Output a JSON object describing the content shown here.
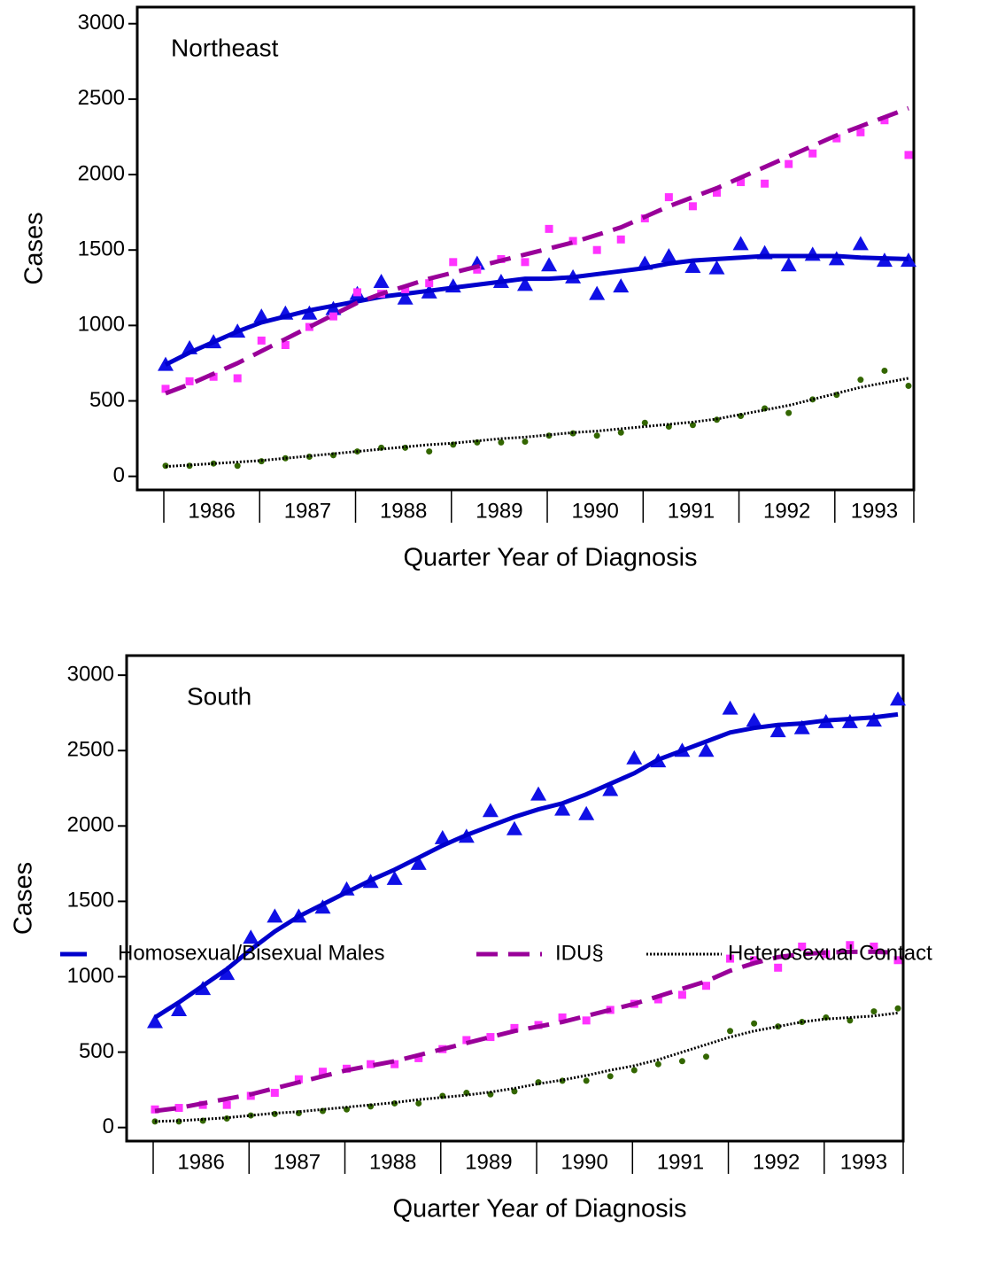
{
  "chart_data": [
    {
      "type": "line",
      "title": "Northeast",
      "xlabel": "Quarter Year of Diagnosis",
      "ylabel": "Cases",
      "categories": [
        "1986",
        null,
        null,
        null,
        "1987",
        null,
        null,
        null,
        "1988",
        null,
        null,
        null,
        "1989",
        null,
        null,
        null,
        "1990",
        null,
        null,
        null,
        "1991",
        null,
        null,
        null,
        "1992",
        null,
        null,
        null,
        "1993",
        null,
        null,
        null
      ],
      "ylim": [
        -90,
        3110
      ],
      "yticks": [
        0,
        500,
        1000,
        1500,
        2000,
        2500,
        3000
      ],
      "series": [
        {
          "name": "Homosexual/Bisexual Males",
          "color": "#0000cc",
          "marker": "triangle",
          "marker_color": "#1010e6",
          "dash": "solid",
          "values": [
            740,
            850,
            890,
            960,
            1060,
            1080,
            1080,
            1110,
            1210,
            1290,
            1180,
            1220,
            1260,
            1410,
            1290,
            1270,
            1400,
            1320,
            1210,
            1260,
            1410,
            1460,
            1390,
            1380,
            1540,
            1480,
            1400,
            1470,
            1440,
            1540,
            1430,
            1430
          ],
          "trend": [
            740,
            820,
            890,
            960,
            1020,
            1060,
            1100,
            1130,
            1160,
            1190,
            1210,
            1230,
            1250,
            1270,
            1290,
            1310,
            1310,
            1320,
            1340,
            1360,
            1380,
            1410,
            1430,
            1440,
            1450,
            1460,
            1460,
            1460,
            1460,
            1450,
            1445,
            1440
          ]
        },
        {
          "name": "IDU§",
          "color": "#990099",
          "marker": "square",
          "marker_color": "#ff33ff",
          "dash": "dashed",
          "values": [
            580,
            630,
            660,
            650,
            900,
            870,
            990,
            1060,
            1220,
            1210,
            1240,
            1280,
            1420,
            1370,
            1440,
            1420,
            1640,
            1560,
            1500,
            1570,
            1710,
            1850,
            1790,
            1880,
            1950,
            1940,
            2070,
            2140,
            2240,
            2280,
            2360,
            2130
          ],
          "trend": [
            550,
            610,
            680,
            750,
            830,
            910,
            990,
            1070,
            1150,
            1210,
            1260,
            1310,
            1350,
            1390,
            1430,
            1470,
            1510,
            1550,
            1600,
            1650,
            1720,
            1790,
            1850,
            1910,
            1980,
            2050,
            2120,
            2190,
            2260,
            2320,
            2380,
            2440
          ]
        },
        {
          "name": "Heterosexual Contact",
          "color": "#000000",
          "marker": "circle",
          "marker_color": "#336600",
          "dash": "dotted",
          "values": [
            70,
            70,
            85,
            70,
            100,
            120,
            130,
            140,
            165,
            190,
            190,
            165,
            210,
            225,
            225,
            230,
            270,
            285,
            270,
            290,
            355,
            330,
            340,
            375,
            400,
            450,
            420,
            510,
            540,
            640,
            700,
            600
          ],
          "trend": [
            65,
            75,
            85,
            95,
            105,
            120,
            135,
            150,
            165,
            180,
            195,
            210,
            220,
            235,
            250,
            260,
            275,
            290,
            300,
            315,
            330,
            345,
            360,
            380,
            410,
            440,
            470,
            510,
            550,
            590,
            620,
            650
          ]
        }
      ]
    },
    {
      "type": "line",
      "title": "South",
      "xlabel": "Quarter Year of Diagnosis",
      "ylabel": "Cases",
      "categories": [
        "1986",
        null,
        null,
        null,
        "1987",
        null,
        null,
        null,
        "1988",
        null,
        null,
        null,
        "1989",
        null,
        null,
        null,
        "1990",
        null,
        null,
        null,
        "1991",
        null,
        null,
        null,
        "1992",
        null,
        null,
        null,
        "1993",
        null,
        null,
        null
      ],
      "ylim": [
        -90,
        3130
      ],
      "yticks": [
        0,
        500,
        1000,
        1500,
        2000,
        2500,
        3000
      ],
      "series": [
        {
          "color": "#0000cc",
          "marker": "triangle",
          "marker_color": "#1010e6",
          "dash": "solid",
          "values": [
            700,
            780,
            920,
            1020,
            1260,
            1400,
            1400,
            1460,
            1580,
            1630,
            1650,
            1750,
            1920,
            1930,
            2100,
            1980,
            2210,
            2110,
            2080,
            2240,
            2450,
            2430,
            2500,
            2500,
            2780,
            2700,
            2630,
            2650,
            2690,
            2690,
            2700,
            2840
          ],
          "trend": [
            730,
            830,
            940,
            1050,
            1180,
            1300,
            1400,
            1480,
            1560,
            1640,
            1710,
            1790,
            1870,
            1940,
            2000,
            2060,
            2110,
            2150,
            2210,
            2280,
            2350,
            2440,
            2500,
            2560,
            2620,
            2650,
            2670,
            2680,
            2700,
            2710,
            2720,
            2740
          ]
        },
        {
          "color": "#990099",
          "marker": "square",
          "marker_color": "#ff33ff",
          "dash": "dashed",
          "values": [
            120,
            130,
            150,
            150,
            210,
            230,
            320,
            370,
            390,
            420,
            420,
            460,
            520,
            580,
            600,
            660,
            680,
            730,
            710,
            780,
            820,
            850,
            880,
            940,
            1120,
            1110,
            1060,
            1200,
            1150,
            1210,
            1200,
            1110
          ],
          "trend": [
            110,
            130,
            160,
            190,
            220,
            260,
            300,
            340,
            380,
            410,
            440,
            480,
            520,
            560,
            600,
            640,
            670,
            700,
            740,
            780,
            820,
            870,
            920,
            970,
            1040,
            1090,
            1130,
            1150,
            1160,
            1165,
            1165,
            1160
          ]
        },
        {
          "color": "#000000",
          "marker": "circle",
          "marker_color": "#336600",
          "dash": "dotted",
          "values": [
            40,
            40,
            45,
            60,
            80,
            90,
            95,
            110,
            120,
            140,
            160,
            160,
            210,
            230,
            220,
            240,
            300,
            310,
            310,
            340,
            380,
            420,
            440,
            470,
            640,
            690,
            670,
            700,
            730,
            710,
            770,
            790
          ],
          "trend": [
            40,
            45,
            55,
            65,
            80,
            95,
            105,
            120,
            135,
            150,
            165,
            185,
            200,
            215,
            235,
            260,
            290,
            315,
            345,
            380,
            410,
            450,
            500,
            550,
            600,
            640,
            670,
            700,
            720,
            730,
            740,
            760
          ]
        }
      ]
    }
  ]
}
